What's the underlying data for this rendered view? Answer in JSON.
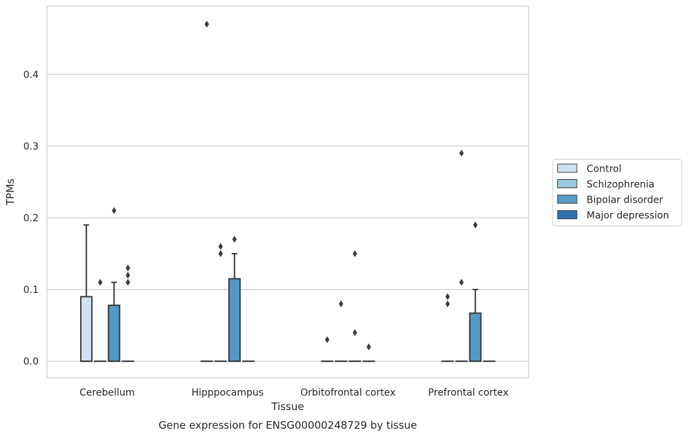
{
  "caption": "Gene expression for ENSG00000248729 by tissue",
  "chart_data": {
    "type": "box",
    "xlabel": "Tissue",
    "ylabel": "TPMs",
    "ylim": [
      -0.023,
      0.495
    ],
    "yticks": [
      0.0,
      0.1,
      0.2,
      0.3,
      0.4
    ],
    "ytick_labels": [
      "0.0",
      "0.1",
      "0.2",
      "0.3",
      "0.4"
    ],
    "grid": true,
    "legend_position": "right",
    "categories": [
      "Cerebellum",
      "Hipppocampus",
      "Orbitofrontal cortex",
      "Prefrontal cortex"
    ],
    "series": [
      {
        "name": "Control",
        "color": "#d0e1f2",
        "boxes": [
          {
            "q1": 0,
            "median": 0,
            "q3": 0.09,
            "whisker_low": 0,
            "whisker_high": 0.19,
            "outliers": []
          },
          {
            "q1": 0,
            "median": 0,
            "q3": 0,
            "whisker_low": 0,
            "whisker_high": 0,
            "outliers": [
              0.47
            ]
          },
          {
            "q1": 0,
            "median": 0,
            "q3": 0,
            "whisker_low": 0,
            "whisker_high": 0,
            "outliers": [
              0.03
            ]
          },
          {
            "q1": 0,
            "median": 0,
            "q3": 0,
            "whisker_low": 0,
            "whisker_high": 0,
            "outliers": [
              0.09,
              0.08
            ]
          }
        ]
      },
      {
        "name": "Schizophrenia",
        "color": "#9ac8e0",
        "boxes": [
          {
            "q1": 0,
            "median": 0,
            "q3": 0,
            "whisker_low": 0,
            "whisker_high": 0,
            "outliers": [
              0.11
            ]
          },
          {
            "q1": 0,
            "median": 0,
            "q3": 0,
            "whisker_low": 0,
            "whisker_high": 0,
            "outliers": [
              0.16,
              0.15
            ]
          },
          {
            "q1": 0,
            "median": 0,
            "q3": 0,
            "whisker_low": 0,
            "whisker_high": 0,
            "outliers": [
              0.08
            ]
          },
          {
            "q1": 0,
            "median": 0,
            "q3": 0,
            "whisker_low": 0,
            "whisker_high": 0,
            "outliers": [
              0.29,
              0.11
            ]
          }
        ]
      },
      {
        "name": "Bipolar disorder",
        "color": "#5499c6",
        "boxes": [
          {
            "q1": 0,
            "median": 0,
            "q3": 0.078,
            "whisker_low": 0,
            "whisker_high": 0.11,
            "outliers": [
              0.21
            ]
          },
          {
            "q1": 0,
            "median": 0,
            "q3": 0.115,
            "whisker_low": 0,
            "whisker_high": 0.15,
            "outliers": [
              0.17
            ]
          },
          {
            "q1": 0,
            "median": 0,
            "q3": 0,
            "whisker_low": 0,
            "whisker_high": 0,
            "outliers": [
              0.15,
              0.04
            ]
          },
          {
            "q1": 0,
            "median": 0,
            "q3": 0.067,
            "whisker_low": 0,
            "whisker_high": 0.1,
            "outliers": [
              0.19
            ]
          }
        ]
      },
      {
        "name": "Major depression",
        "color": "#2e70b0",
        "boxes": [
          {
            "q1": 0,
            "median": 0,
            "q3": 0,
            "whisker_low": 0,
            "whisker_high": 0,
            "outliers": [
              0.13,
              0.12,
              0.11
            ]
          },
          {
            "q1": 0,
            "median": 0,
            "q3": 0,
            "whisker_low": 0,
            "whisker_high": 0,
            "outliers": []
          },
          {
            "q1": 0,
            "median": 0,
            "q3": 0,
            "whisker_low": 0,
            "whisker_high": 0,
            "outliers": [
              0.02
            ]
          },
          {
            "q1": 0,
            "median": 0,
            "q3": 0,
            "whisker_low": 0,
            "whisker_high": 0,
            "outliers": []
          }
        ]
      }
    ]
  }
}
